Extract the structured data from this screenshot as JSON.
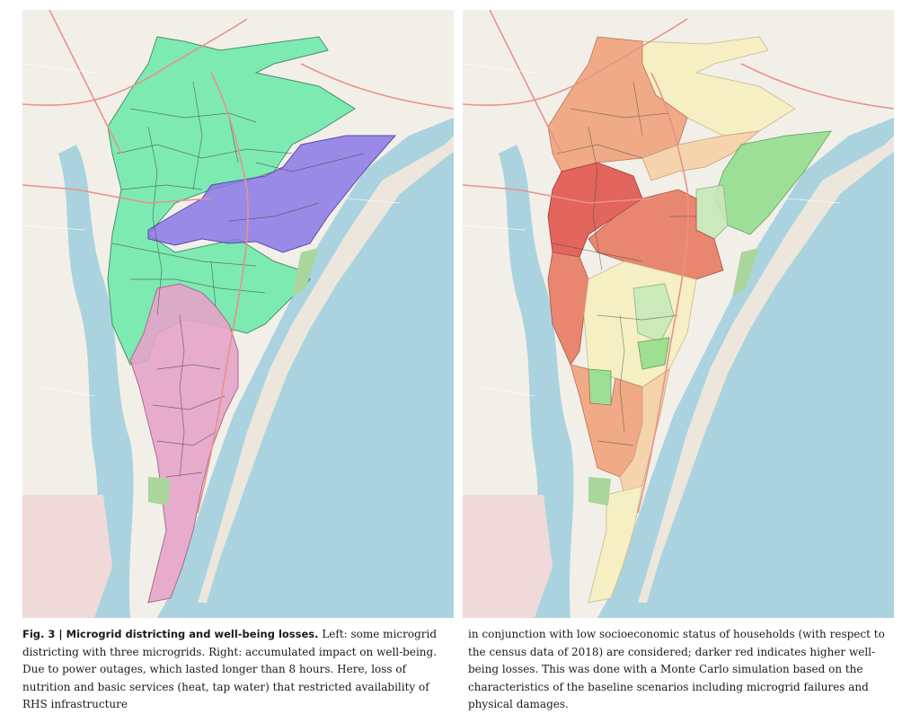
{
  "figure": {
    "label": "Fig. 3 | ",
    "title": "Microgrid districting and well-being losses.",
    "caption_left_rest": " Left: some microgrid districting with three microgrids. Right: accumulated impact on well-being. Due to power outages, which lasted longer than 8 hours. Here, loss of nutrition and basic services (heat, tap water) that restricted availability of RHS infrastructure",
    "caption_right": "in conjunction with low socioeconomic status of households (with respect to the census data of 2018) are considered; darker red indicates higher well-being losses. This was done with a Monte Carlo simulation based on the characteristics of the baseline scenarios including microgrid failures and physical damages."
  },
  "maps": {
    "left": {
      "regions": [
        {
          "name": "microgrid-green",
          "color": "#5fe8a4"
        },
        {
          "name": "microgrid-purple",
          "color": "#8a78e6"
        },
        {
          "name": "microgrid-pink",
          "color": "#e6a3c8"
        }
      ]
    },
    "right": {
      "regions": [
        {
          "name": "loss-dark-red",
          "color": "#e0554f"
        },
        {
          "name": "loss-red",
          "color": "#e87a62"
        },
        {
          "name": "loss-orange",
          "color": "#efa27a"
        },
        {
          "name": "loss-peach",
          "color": "#f5cfa6"
        },
        {
          "name": "loss-pale-yellow",
          "color": "#f6eec0"
        },
        {
          "name": "loss-light-green",
          "color": "#c8e8b8"
        },
        {
          "name": "loss-green",
          "color": "#8fdc8a"
        }
      ]
    },
    "colors": {
      "water": "#aad3df",
      "land": "#f2efe9",
      "road_major": "#e8928a",
      "road_minor": "#ffffff",
      "wetland": "#d7e6cf"
    }
  }
}
